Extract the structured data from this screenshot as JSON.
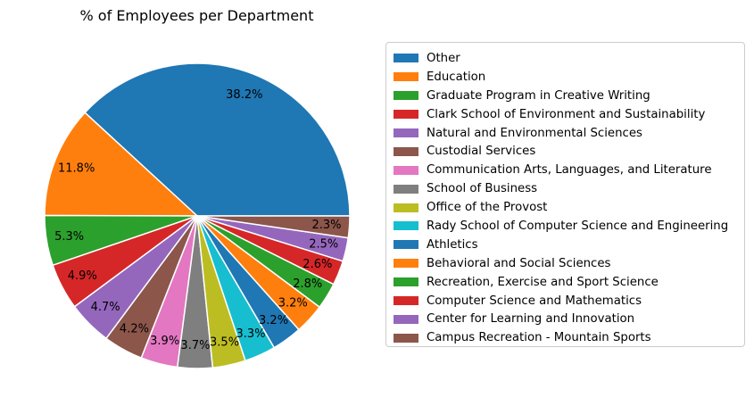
{
  "chart_data": {
    "type": "pie",
    "title": "% of Employees per Department",
    "legend_position": "right",
    "slices": [
      {
        "label": "Other",
        "value": 38.2,
        "display": "38.2%",
        "color": "#1f77b4"
      },
      {
        "label": "Education",
        "value": 11.8,
        "display": "11.8%",
        "color": "#ff7f0e"
      },
      {
        "label": "Graduate Program in Creative Writing",
        "value": 5.3,
        "display": "5.3%",
        "color": "#2ca02c"
      },
      {
        "label": "Clark School of Environment and Sustainability",
        "value": 4.9,
        "display": "4.9%",
        "color": "#d62728"
      },
      {
        "label": "Natural and Environmental Sciences",
        "value": 4.7,
        "display": "4.7%",
        "color": "#9467bd"
      },
      {
        "label": "Custodial Services",
        "value": 4.2,
        "display": "4.2%",
        "color": "#8c564b"
      },
      {
        "label": "Communication Arts, Languages, and Literature",
        "value": 3.9,
        "display": "3.9%",
        "color": "#e377c2"
      },
      {
        "label": "School of Business",
        "value": 3.7,
        "display": "3.7%",
        "color": "#7f7f7f"
      },
      {
        "label": "Office of the Provost",
        "value": 3.5,
        "display": "3.5%",
        "color": "#bcbd22"
      },
      {
        "label": "Rady School of Computer Science and Engineering",
        "value": 3.3,
        "display": "3.3%",
        "color": "#17becf"
      },
      {
        "label": "Athletics",
        "value": 3.2,
        "display": "3.2%",
        "color": "#1f77b4"
      },
      {
        "label": "Behavioral and Social Sciences",
        "value": 3.2,
        "display": "3.2%",
        "color": "#ff7f0e"
      },
      {
        "label": "Recreation, Exercise and Sport Science",
        "value": 2.8,
        "display": "2.8%",
        "color": "#2ca02c"
      },
      {
        "label": "Computer Science and Mathematics",
        "value": 2.6,
        "display": "2.6%",
        "color": "#d62728"
      },
      {
        "label": "Center for Learning and Innovation",
        "value": 2.5,
        "display": "2.5%",
        "color": "#9467bd"
      },
      {
        "label": "Campus Recreation - Mountain Sports",
        "value": 2.3,
        "display": "2.3%",
        "color": "#8c564b"
      }
    ]
  }
}
